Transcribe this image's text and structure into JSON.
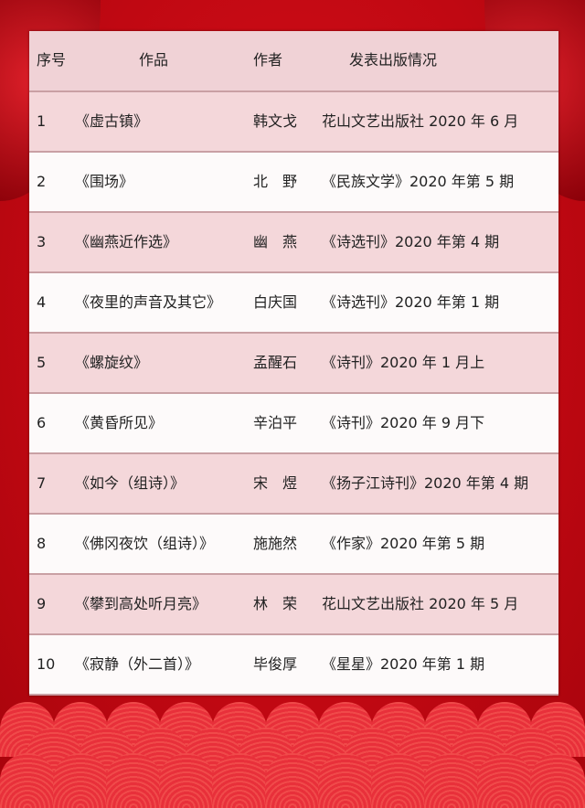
{
  "headers": [
    "序号",
    "作品",
    "作者",
    "发表出版情况"
  ],
  "rows": [
    {
      "no": "1",
      "work": "《虚古镇》",
      "author": "韩文戈",
      "pub": "花山文艺出版社 2020 年 6 月"
    },
    {
      "no": "2",
      "work": "《围场》",
      "author": "北　野",
      "pub": "《民族文学》2020 年第 5 期"
    },
    {
      "no": "3",
      "work": "《幽燕近作选》",
      "author": "幽　燕",
      "pub": "《诗选刊》2020 年第 4 期"
    },
    {
      "no": "4",
      "work": "《夜里的声音及其它》",
      "author": "白庆国",
      "pub": "《诗选刊》2020 年第 1 期"
    },
    {
      "no": "5",
      "work": "《螺旋纹》",
      "author": "孟醒石",
      "pub": "《诗刊》2020 年 1 月上"
    },
    {
      "no": "6",
      "work": "《黄昏所见》",
      "author": "辛泊平",
      "pub": "《诗刊》2020 年 9 月下"
    },
    {
      "no": "7",
      "work": "《如今（组诗）》",
      "author": "宋　煜",
      "pub": "《扬子江诗刊》2020 年第 4 期"
    },
    {
      "no": "8",
      "work": "《佛冈夜饮（组诗）》",
      "author": "施施然",
      "pub": "《作家》2020 年第 5 期"
    },
    {
      "no": "9",
      "work": "《攀到高处听月亮》",
      "author": "林　荣",
      "pub": "花山文艺出版社 2020 年 5 月"
    },
    {
      "no": "10",
      "work": "《寂静（外二首）》",
      "author": "毕俊厚",
      "pub": "《星星》2020 年第 1 期"
    }
  ]
}
